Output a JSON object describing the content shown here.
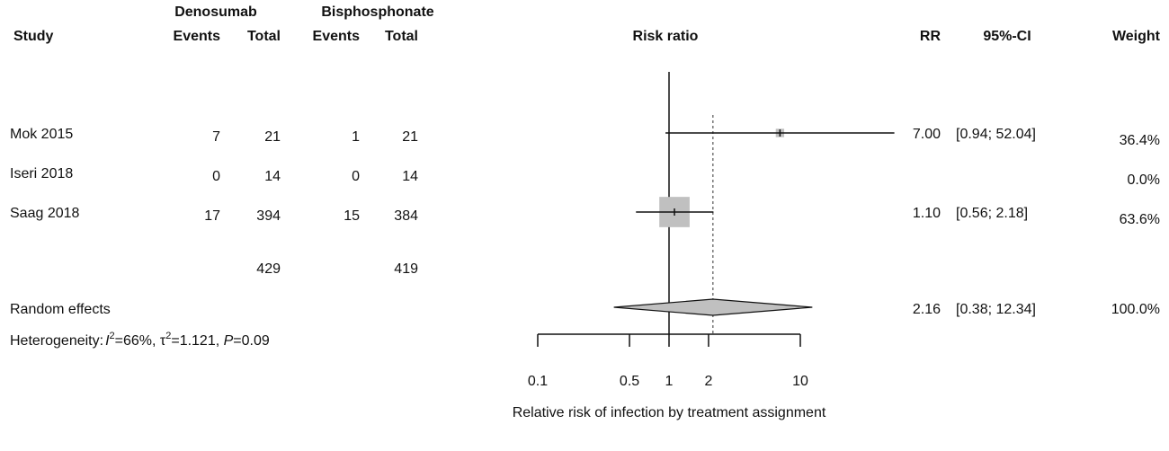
{
  "chart_data": {
    "type": "forest",
    "group_headers": [
      "Denosumab",
      "Bisphosphonate"
    ],
    "column_headers": [
      "Study",
      "Events",
      "Total",
      "Events",
      "Total",
      "Risk ratio",
      "RR",
      "95%-CI",
      "Weight"
    ],
    "studies": [
      "Mok 2015",
      "Iseri 2018",
      "Saag 2018"
    ],
    "events_1": [
      7,
      0,
      17
    ],
    "total_1": [
      21,
      14,
      394
    ],
    "events_2": [
      1,
      0,
      15
    ],
    "total_2": [
      21,
      14,
      384
    ],
    "rr": [
      7,
      null,
      1.1
    ],
    "rr_labels": [
      "7.00",
      null,
      "1.10"
    ],
    "ci_low": [
      0.94,
      null,
      0.56
    ],
    "ci_high": [
      52.04,
      null,
      2.18
    ],
    "ci_labels": [
      "[0.94; 52.04]",
      null,
      "[0.56; 2.18]"
    ],
    "weight": [
      36.4,
      0,
      63.6
    ],
    "weight_labels": [
      "36.4%",
      "0.0%",
      "63.6%"
    ],
    "totals": [
      429,
      419
    ],
    "pooled": {
      "name": "Random effects",
      "rr": 2.16,
      "rr_label": "2.16",
      "ci_low": 0.38,
      "ci_high": 12.34,
      "ci_label": "[0.38; 12.34]",
      "weight": 100,
      "weight_label": "100.0%"
    },
    "heterogeneity_parts": [
      "Heterogeneity:",
      "I",
      "2",
      "=66%, τ",
      "2",
      "=1.121, ",
      "P",
      "=0.09"
    ],
    "x_label": "Relative risk of infection by treatment assignment",
    "x_log": true,
    "xlim": [
      0.1,
      10
    ],
    "xticks": [
      0.1,
      0.5,
      1,
      2,
      10
    ],
    "null_line": 1,
    "box_color": "#c0c0c0",
    "diamond_color": "#c0c0c0"
  }
}
